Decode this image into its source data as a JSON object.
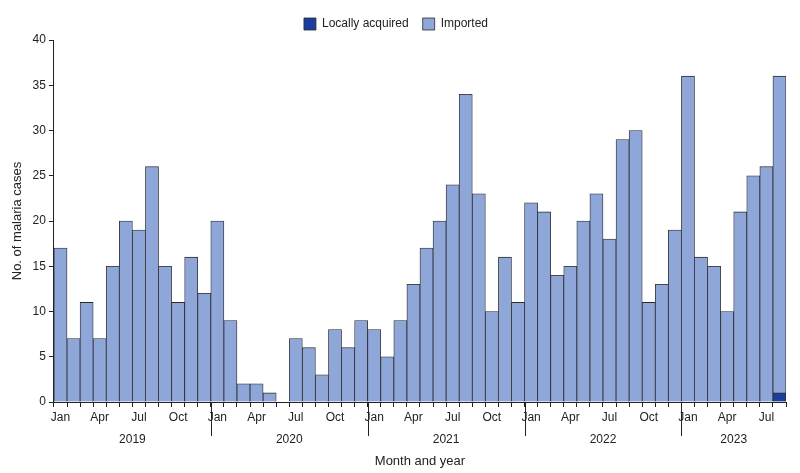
{
  "chart_data": {
    "type": "bar",
    "stacked": true,
    "grid": false,
    "legend": "top",
    "x_label": "Month and year",
    "y_label": "No. of malaria cases",
    "categories": [
      "Jan",
      null,
      null,
      "Apr",
      null,
      null,
      "Jul",
      null,
      null,
      "Oct",
      null,
      null,
      "Jan",
      null,
      null,
      "Apr",
      null,
      null,
      "Jul",
      null,
      null,
      "Oct",
      null,
      null,
      "Jan",
      null,
      null,
      "Apr",
      null,
      null,
      "Jul",
      null,
      null,
      "Oct",
      null,
      null,
      "Jan",
      null,
      null,
      "Apr",
      null,
      null,
      "Jul",
      null,
      null,
      "Oct",
      null,
      null,
      "Jan",
      null,
      null,
      "Apr",
      null,
      null,
      "Jul",
      null
    ],
    "year_groups": [
      {
        "label": "2019",
        "months": 12
      },
      {
        "label": "2020",
        "months": 12
      },
      {
        "label": "2021",
        "months": 12
      },
      {
        "label": "2022",
        "months": 12
      },
      {
        "label": "2023",
        "months": 8
      }
    ],
    "series": [
      {
        "name": "Locally acquired",
        "color": "#1c3f9e",
        "values": [
          0,
          0,
          0,
          0,
          0,
          0,
          0,
          0,
          0,
          0,
          0,
          0,
          0,
          0,
          0,
          0,
          0,
          0,
          0,
          0,
          0,
          0,
          0,
          0,
          0,
          0,
          0,
          0,
          0,
          0,
          0,
          0,
          0,
          0,
          0,
          0,
          0,
          0,
          0,
          0,
          0,
          0,
          0,
          0,
          0,
          0,
          0,
          0,
          0,
          0,
          0,
          0,
          0,
          0,
          0,
          1
        ]
      },
      {
        "name": "Imported",
        "color": "#8fa6d8",
        "values": [
          17,
          7,
          11,
          7,
          15,
          20,
          19,
          26,
          15,
          11,
          16,
          12,
          20,
          9,
          2,
          2,
          1,
          0,
          7,
          6,
          3,
          8,
          6,
          9,
          8,
          5,
          9,
          13,
          17,
          20,
          24,
          34,
          23,
          10,
          16,
          11,
          22,
          21,
          14,
          15,
          20,
          23,
          18,
          29,
          30,
          11,
          13,
          19,
          36,
          16,
          15,
          10,
          21,
          25,
          26,
          35
        ]
      }
    ],
    "ylim": [
      0,
      40
    ],
    "yticks": [
      0,
      5,
      10,
      15,
      20,
      25,
      30,
      35,
      40
    ]
  }
}
